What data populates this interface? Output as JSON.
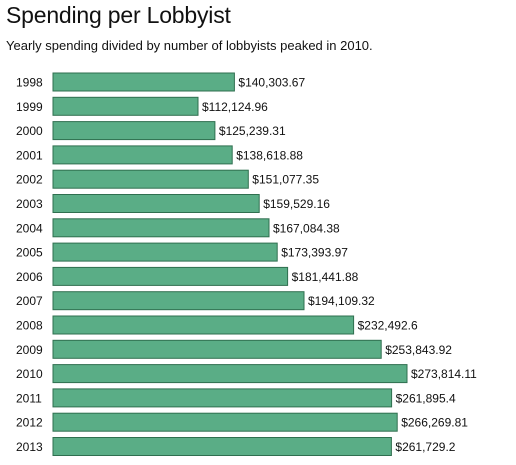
{
  "chart_data": {
    "type": "bar",
    "orientation": "horizontal",
    "title": "Spending per Lobbyist",
    "subtitle": "Yearly spending divided by number of lobbyists peaked in 2010.",
    "categories": [
      "1998",
      "1999",
      "2000",
      "2001",
      "2002",
      "2003",
      "2004",
      "2005",
      "2006",
      "2007",
      "2008",
      "2009",
      "2010",
      "2011",
      "2012",
      "2013"
    ],
    "values": [
      140303.67,
      112124.96,
      125239.31,
      138618.88,
      151077.35,
      159529.16,
      167084.38,
      173393.97,
      181441.88,
      194109.32,
      232492.6,
      253843.92,
      273814.11,
      261895.4,
      266269.81,
      261729.2
    ],
    "data_labels": [
      "$140,303.67",
      "$112,124.96",
      "$125,239.31",
      "$138,618.88",
      "$151,077.35",
      "$159,529.16",
      "$167,084.38",
      "$173,393.97",
      "$181,441.88",
      "$194,109.32",
      "$232,492.6",
      "$253,843.92",
      "$273,814.11",
      "$261,895.4",
      "$266,269.81",
      "$261,729.2"
    ],
    "xlim": [
      0,
      273814.11
    ],
    "bar_color": "#5aad86",
    "bar_stroke": "#2f6f4f",
    "grid": false,
    "legend": "none"
  }
}
